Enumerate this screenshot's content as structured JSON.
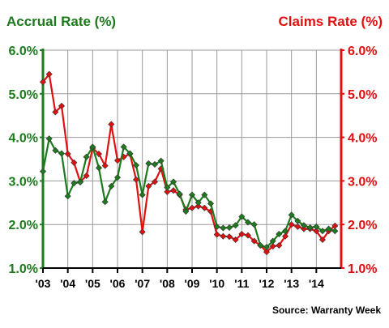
{
  "chart_data": {
    "type": "line",
    "left_axis_label": "Accrual Rate (%)",
    "right_axis_label": "Claims Rate (%)",
    "source": "Source: Warranty Week",
    "ylim": [
      1.0,
      6.0
    ],
    "y_ticks": [
      "1.0%",
      "2.0%",
      "3.0%",
      "4.0%",
      "5.0%",
      "6.0%"
    ],
    "x_ticks": [
      "'03",
      "'04",
      "'05",
      "'06",
      "'07",
      "'08",
      "'09",
      "'10",
      "'11",
      "'12",
      "'13",
      "'14"
    ],
    "x_range": [
      2003.0,
      2015.0
    ],
    "grid": true,
    "colors": {
      "accrual": "#1d7a1d",
      "claims": "#e01010",
      "grid": "#9a9a9a",
      "axis": "#000000"
    },
    "series": [
      {
        "name": "Accrual Rate (%)",
        "axis": "left",
        "x": [
          2003.0,
          2003.25,
          2003.5,
          2003.75,
          2004.0,
          2004.25,
          2004.5,
          2004.75,
          2005.0,
          2005.25,
          2005.5,
          2005.75,
          2006.0,
          2006.25,
          2006.5,
          2006.75,
          2007.0,
          2007.25,
          2007.5,
          2007.75,
          2008.0,
          2008.25,
          2008.5,
          2008.75,
          2009.0,
          2009.25,
          2009.5,
          2009.75,
          2010.0,
          2010.25,
          2010.5,
          2010.75,
          2011.0,
          2011.25,
          2011.5,
          2011.75,
          2012.0,
          2012.25,
          2012.5,
          2012.75,
          2013.0,
          2013.25,
          2013.5,
          2013.75,
          2014.0,
          2014.25,
          2014.5,
          2014.75
        ],
        "values": [
          3.22,
          3.97,
          3.7,
          3.63,
          2.65,
          2.95,
          2.97,
          3.55,
          3.78,
          3.3,
          2.52,
          2.88,
          3.08,
          3.78,
          3.63,
          3.36,
          2.68,
          3.4,
          3.38,
          3.46,
          2.85,
          2.98,
          2.7,
          2.3,
          2.68,
          2.5,
          2.68,
          2.48,
          1.95,
          1.92,
          1.93,
          1.98,
          2.18,
          2.05,
          2.0,
          1.52,
          1.48,
          1.62,
          1.78,
          1.85,
          2.22,
          2.08,
          1.98,
          1.93,
          1.95,
          1.85,
          1.9,
          1.85
        ]
      },
      {
        "name": "Claims Rate (%)",
        "axis": "right",
        "x": [
          2003.0,
          2003.25,
          2003.5,
          2003.75,
          2004.0,
          2004.25,
          2004.5,
          2004.75,
          2005.0,
          2005.25,
          2005.5,
          2005.75,
          2006.0,
          2006.25,
          2006.5,
          2006.75,
          2007.0,
          2007.25,
          2007.5,
          2007.75,
          2008.0,
          2008.25,
          2008.5,
          2008.75,
          2009.0,
          2009.25,
          2009.5,
          2009.75,
          2010.0,
          2010.25,
          2010.5,
          2010.75,
          2011.0,
          2011.25,
          2011.5,
          2011.75,
          2012.0,
          2012.25,
          2012.5,
          2012.75,
          2013.0,
          2013.25,
          2013.5,
          2013.75,
          2014.0,
          2014.25,
          2014.5,
          2014.75
        ],
        "values": [
          5.27,
          5.45,
          4.58,
          4.72,
          3.62,
          3.42,
          2.98,
          3.12,
          3.75,
          3.62,
          3.35,
          4.3,
          3.47,
          3.55,
          3.62,
          3.03,
          1.83,
          2.88,
          2.98,
          3.28,
          2.75,
          2.78,
          2.68,
          2.34,
          2.38,
          2.42,
          2.38,
          2.3,
          1.77,
          1.73,
          1.72,
          1.65,
          1.78,
          1.75,
          1.62,
          1.52,
          1.37,
          1.5,
          1.52,
          1.73,
          2.0,
          1.95,
          1.9,
          1.9,
          1.85,
          1.65,
          1.85,
          1.97
        ]
      }
    ]
  }
}
